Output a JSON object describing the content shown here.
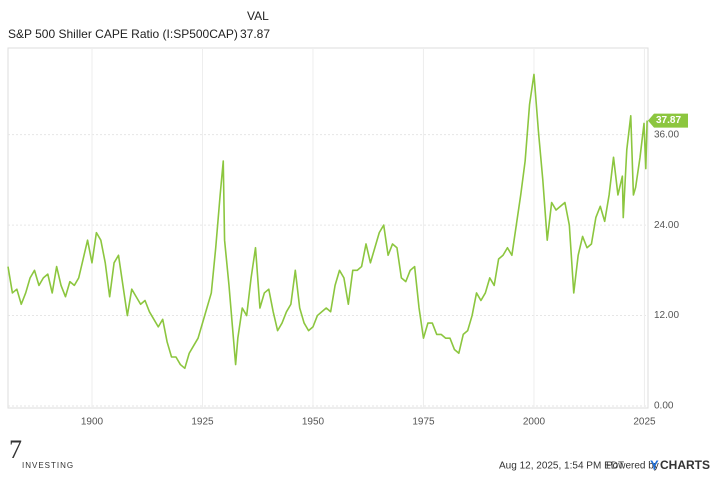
{
  "chart_data": {
    "type": "line",
    "header_label": "VAL",
    "current_value": 37.87,
    "xlim": [
      1881,
      2025.8
    ],
    "xticks": [
      1900,
      1925,
      1950,
      1975,
      2000,
      2025
    ],
    "ylim": [
      0,
      47.5
    ],
    "yticks": [
      {
        "value": 0,
        "label": "0.00"
      },
      {
        "value": 12,
        "label": "12.00"
      },
      {
        "value": 24,
        "label": "24.00"
      },
      {
        "value": 36,
        "label": "36.00"
      }
    ],
    "grid": true,
    "series": [
      {
        "name": "S&P 500 Shiller CAPE Ratio (I:SP500CAP)",
        "color": "#8cc63f",
        "x": [
          1881,
          1882,
          1883,
          1884,
          1885,
          1886,
          1887,
          1888,
          1889,
          1890,
          1891,
          1892,
          1893,
          1894,
          1895,
          1896,
          1897,
          1898,
          1899,
          1900,
          1901,
          1902,
          1903,
          1904,
          1905,
          1906,
          1907,
          1908,
          1909,
          1910,
          1911,
          1912,
          1913,
          1914,
          1915,
          1916,
          1917,
          1918,
          1919,
          1920,
          1921,
          1922,
          1923,
          1924,
          1925,
          1926,
          1927,
          1928,
          1929,
          1929.7,
          1930,
          1931,
          1932,
          1932.5,
          1933,
          1934,
          1935,
          1936,
          1937,
          1938,
          1939,
          1940,
          1941,
          1942,
          1943,
          1944,
          1945,
          1946,
          1947,
          1948,
          1949,
          1950,
          1951,
          1952,
          1953,
          1954,
          1955,
          1956,
          1957,
          1958,
          1959,
          1960,
          1961,
          1962,
          1963,
          1964,
          1965,
          1966,
          1967,
          1968,
          1969,
          1970,
          1971,
          1972,
          1973,
          1974,
          1975,
          1976,
          1977,
          1978,
          1979,
          1980,
          1981,
          1982,
          1983,
          1984,
          1985,
          1986,
          1987,
          1988,
          1989,
          1990,
          1991,
          1992,
          1993,
          1994,
          1995,
          1996,
          1997,
          1998,
          1999,
          2000,
          2001,
          2002,
          2003,
          2004,
          2005,
          2006,
          2007,
          2008,
          2009,
          2010,
          2011,
          2012,
          2013,
          2014,
          2015,
          2016,
          2017,
          2018,
          2019,
          2020,
          2020.2,
          2021,
          2021.9,
          2022.5,
          2023,
          2024,
          2024.9,
          2025.3,
          2025.6
        ],
        "values": [
          18.5,
          15,
          15.5,
          13.5,
          15,
          17,
          18,
          16,
          17,
          17.5,
          15,
          18.5,
          16,
          14.5,
          16.5,
          16,
          17,
          19.5,
          22,
          19,
          23,
          22,
          19,
          14.5,
          19,
          20,
          16,
          12,
          15.5,
          14.5,
          13.5,
          14,
          12.5,
          11.5,
          10.5,
          11.5,
          8.5,
          6.5,
          6.5,
          5.5,
          5,
          7,
          8,
          9,
          11,
          13,
          15,
          21,
          28,
          32.5,
          22,
          16,
          9,
          5.5,
          9,
          13,
          12,
          17,
          21,
          13,
          15,
          15.5,
          12.5,
          10,
          11,
          12.5,
          13.5,
          18,
          13,
          11,
          10,
          10.5,
          12,
          12.5,
          13,
          12.5,
          16,
          18,
          17,
          13.5,
          18,
          18,
          18.5,
          21.5,
          19,
          21,
          23,
          24,
          20,
          21.5,
          21,
          17,
          16.5,
          18,
          18.5,
          13,
          9,
          11,
          11,
          9.5,
          9.5,
          9,
          9,
          7.5,
          7,
          9.5,
          10,
          12,
          15,
          14,
          15,
          17,
          16,
          19.5,
          20,
          21,
          20,
          24,
          28,
          32.5,
          40,
          44,
          36.5,
          30,
          22,
          27,
          26,
          26.5,
          27,
          24,
          15,
          20,
          22.5,
          21,
          21.5,
          25,
          26.5,
          24.5,
          28,
          33,
          28,
          30.5,
          25,
          34,
          38.5,
          28,
          29,
          33,
          37.5,
          31.5,
          37.87
        ]
      }
    ]
  },
  "footer": {
    "timestamp": "Aug 12, 2025, 1:54 PM EDT",
    "powered": "Powered by",
    "brand_y": "Y",
    "brand_rest": "CHARTS",
    "logo_digit": "7",
    "logo_text": "INVESTING"
  }
}
